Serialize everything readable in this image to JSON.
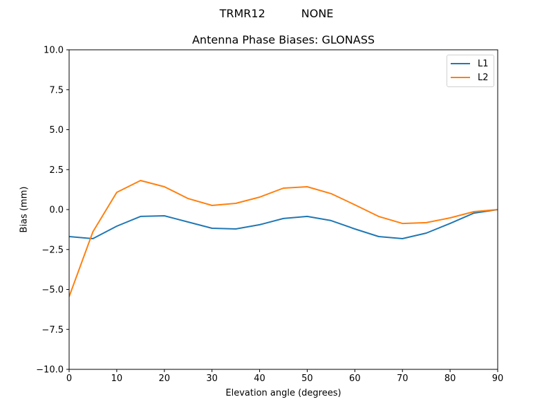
{
  "chart_data": {
    "type": "line",
    "suptitle_left": "TRMR12",
    "suptitle_right": "NONE",
    "title": "Antenna Phase Biases: GLONASS",
    "xlabel": "Elevation angle (degrees)",
    "ylabel": "Bias (mm)",
    "xlim": [
      0,
      90
    ],
    "ylim": [
      -10,
      10
    ],
    "grid": false,
    "legend_position": "upper right",
    "x": [
      0,
      5,
      10,
      15,
      20,
      25,
      30,
      35,
      40,
      45,
      50,
      55,
      60,
      65,
      70,
      75,
      80,
      85,
      90
    ],
    "series": [
      {
        "name": "L1",
        "color": "#1f77b4",
        "values": [
          -1.69,
          -1.82,
          -1.04,
          -0.43,
          -0.39,
          -0.78,
          -1.17,
          -1.21,
          -0.95,
          -0.56,
          -0.43,
          -0.69,
          -1.21,
          -1.69,
          -1.82,
          -1.47,
          -0.87,
          -0.22,
          0.0
        ]
      },
      {
        "name": "L2",
        "color": "#ff7f0e",
        "values": [
          -5.45,
          -1.39,
          1.08,
          1.82,
          1.43,
          0.69,
          0.26,
          0.39,
          0.78,
          1.34,
          1.43,
          1.0,
          0.3,
          -0.43,
          -0.87,
          -0.82,
          -0.52,
          -0.13,
          0.0
        ]
      }
    ],
    "xticks": [
      0,
      10,
      20,
      30,
      40,
      50,
      60,
      70,
      80,
      90
    ],
    "xtick_labels": [
      "0",
      "10",
      "20",
      "30",
      "40",
      "50",
      "60",
      "70",
      "80",
      "90"
    ],
    "yticks": [
      10,
      7.5,
      5,
      2.5,
      0,
      -2.5,
      -5,
      -7.5,
      -10
    ],
    "ytick_labels": [
      "10.0",
      "7.5",
      "5.0",
      "2.5",
      "0.0",
      "−2.5",
      "−5.0",
      "−7.5",
      "−10.0"
    ]
  }
}
